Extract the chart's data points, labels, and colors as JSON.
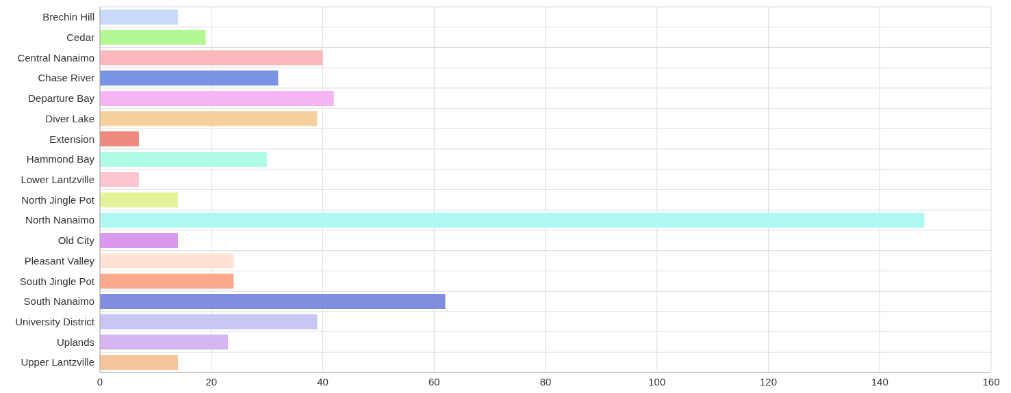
{
  "chart_data": {
    "type": "bar",
    "orientation": "horizontal",
    "categories": [
      "Brechin Hill",
      "Cedar",
      "Central Nanaimo",
      "Chase River",
      "Departure Bay",
      "Diver Lake",
      "Extension",
      "Hammond Bay",
      "Lower Lantzville",
      "North Jingle Pot",
      "North Nanaimo",
      "Old City",
      "Pleasant Valley",
      "South Jingle Pot",
      "South Nanaimo",
      "University District",
      "Uplands",
      "Upper Lantzville"
    ],
    "values": [
      14,
      19,
      40,
      32,
      42,
      39,
      7,
      30,
      7,
      14,
      148,
      14,
      24,
      24,
      62,
      39,
      23,
      14
    ],
    "colors": [
      "#cadafa",
      "#b4f896",
      "#fbb8bc",
      "#7894e2",
      "#f5b5f4",
      "#f5d09c",
      "#ef8a80",
      "#aefce6",
      "#fdc6cf",
      "#e2f39a",
      "#b0f8f2",
      "#da98ee",
      "#fee3d4",
      "#fba98e",
      "#818ee0",
      "#c9c5f5",
      "#d6b6f0",
      "#f6c49a"
    ],
    "xlim": [
      0,
      160
    ],
    "xticks": [
      0,
      20,
      40,
      60,
      80,
      100,
      120,
      140,
      160
    ],
    "grid": true
  }
}
